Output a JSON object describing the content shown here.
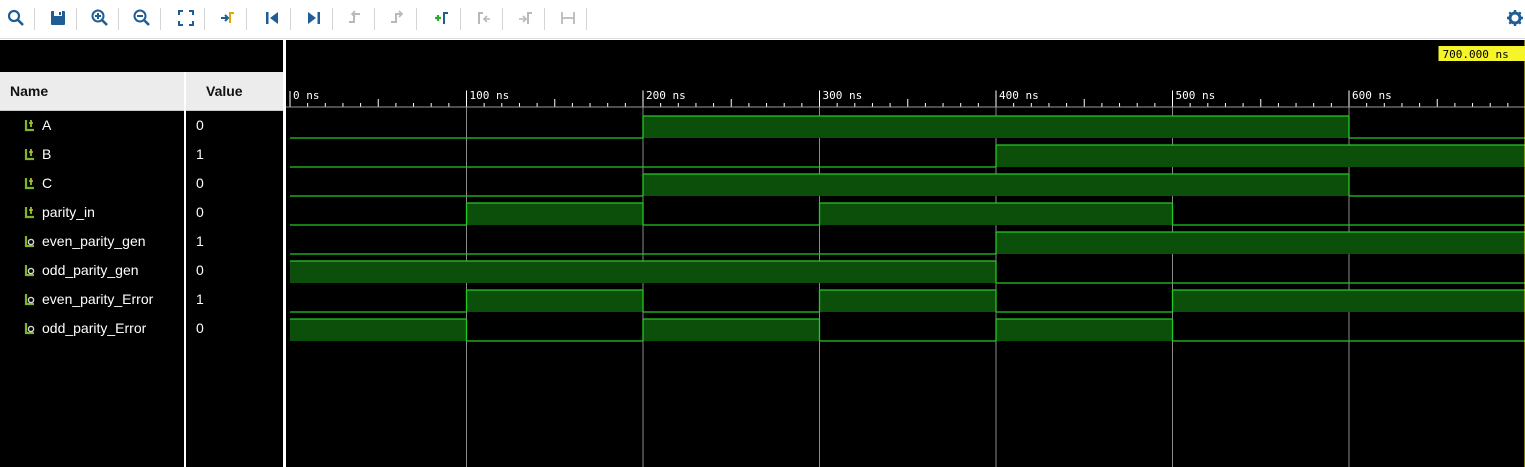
{
  "toolbar": {
    "buttons": [
      {
        "name": "zoom-search-icon",
        "glyph": "search"
      },
      {
        "name": "save-icon",
        "glyph": "save"
      },
      {
        "name": "zoom-in-icon",
        "glyph": "zoom-in"
      },
      {
        "name": "zoom-out-icon",
        "glyph": "zoom-out"
      },
      {
        "name": "zoom-fit-icon",
        "glyph": "fit"
      },
      {
        "name": "go-to-cursor-icon",
        "glyph": "cursor"
      },
      {
        "name": "go-to-start-icon",
        "glyph": "start"
      },
      {
        "name": "go-to-end-icon",
        "glyph": "end"
      },
      {
        "name": "previous-transition-icon",
        "glyph": "prev"
      },
      {
        "name": "next-transition-icon",
        "glyph": "next"
      },
      {
        "name": "add-marker-icon",
        "glyph": "add-marker"
      },
      {
        "name": "previous-marker-icon",
        "glyph": "prev-marker"
      },
      {
        "name": "next-marker-icon",
        "glyph": "next-marker"
      },
      {
        "name": "swap-cursors-icon",
        "glyph": "swap"
      }
    ],
    "settings_icon": "gear-icon"
  },
  "columns": {
    "name": "Name",
    "value": "Value"
  },
  "signals": [
    {
      "name": "A",
      "value": "0",
      "type": "input",
      "wave": [
        [
          0,
          0
        ],
        [
          200,
          1
        ],
        [
          600,
          0
        ]
      ]
    },
    {
      "name": "B",
      "value": "1",
      "type": "input",
      "wave": [
        [
          0,
          0
        ],
        [
          400,
          1
        ]
      ]
    },
    {
      "name": "C",
      "value": "0",
      "type": "input",
      "wave": [
        [
          0,
          0
        ],
        [
          200,
          1
        ],
        [
          600,
          0
        ]
      ]
    },
    {
      "name": "parity_in",
      "value": "0",
      "type": "input",
      "wave": [
        [
          0,
          0
        ],
        [
          100,
          1
        ],
        [
          200,
          0
        ],
        [
          300,
          1
        ],
        [
          500,
          0
        ]
      ]
    },
    {
      "name": "even_parity_gen",
      "value": "1",
      "type": "output",
      "wave": [
        [
          0,
          0
        ],
        [
          400,
          1
        ]
      ]
    },
    {
      "name": "odd_parity_gen",
      "value": "0",
      "type": "output",
      "wave": [
        [
          0,
          1
        ],
        [
          400,
          0
        ]
      ]
    },
    {
      "name": "even_parity_Error",
      "value": "1",
      "type": "output",
      "wave": [
        [
          0,
          0
        ],
        [
          100,
          1
        ],
        [
          200,
          0
        ],
        [
          300,
          1
        ],
        [
          400,
          0
        ],
        [
          500,
          1
        ]
      ]
    },
    {
      "name": "odd_parity_Error",
      "value": "0",
      "type": "output",
      "wave": [
        [
          0,
          1
        ],
        [
          100,
          0
        ],
        [
          200,
          1
        ],
        [
          300,
          0
        ],
        [
          400,
          1
        ],
        [
          500,
          0
        ]
      ]
    }
  ],
  "timeline": {
    "unit": "ns",
    "ticks": [
      {
        "t": 0,
        "label": "0 ns"
      },
      {
        "t": 100,
        "label": "100 ns"
      },
      {
        "t": 200,
        "label": "200 ns"
      },
      {
        "t": 300,
        "label": "300 ns"
      },
      {
        "t": 400,
        "label": "400 ns"
      },
      {
        "t": 500,
        "label": "500 ns"
      },
      {
        "t": 600,
        "label": "600 ns"
      }
    ],
    "cursor": {
      "t": 700,
      "label": "700.000 ns"
    }
  },
  "colors": {
    "background": "#000000",
    "wave_line": "#22c922",
    "wave_high_fill": "#0b4f0b",
    "grid": "#8a8a8a",
    "cursor": "#f5f52a",
    "cursor_label_bg": "#f5f52a",
    "toolbar_icon": "#1f5d95",
    "signal_icon": "#7fb52c"
  }
}
